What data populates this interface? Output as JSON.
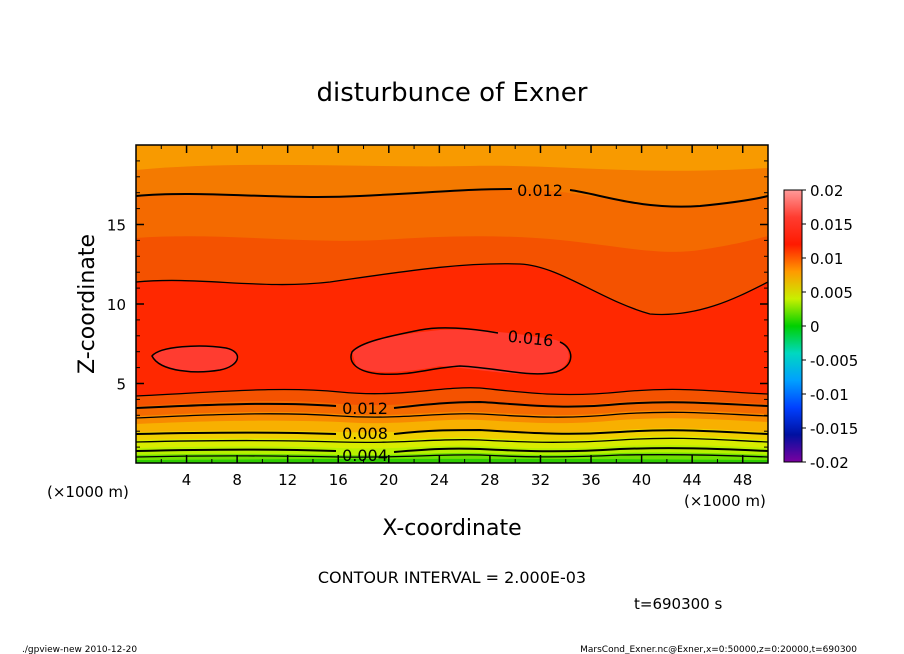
{
  "chart_data": {
    "type": "heatmap",
    "title": "disturbunce of Exner",
    "xlabel": "X-coordinate",
    "ylabel": "Z-coordinate",
    "x_unit": "(×1000 m)",
    "y_unit": "(×1000 m)",
    "xlim": [
      0,
      50
    ],
    "ylim": [
      0,
      20
    ],
    "x_ticks": [
      "4",
      "8",
      "12",
      "16",
      "20",
      "24",
      "28",
      "32",
      "36",
      "40",
      "44",
      "48"
    ],
    "y_ticks": [
      "5",
      "10",
      "15"
    ],
    "colorbar": {
      "tick_labels": [
        "0.02",
        "0.015",
        "0.01",
        "0.005",
        "0",
        "-0.005",
        "-0.01",
        "-0.015",
        "-0.02"
      ],
      "range": [
        -0.02,
        0.02
      ]
    },
    "contour_interval": 0.002,
    "contour_labels": [
      "0.012",
      "0.016",
      "0.012",
      "0.008",
      "0.004"
    ],
    "field_samples_x": [
      0,
      8,
      16,
      24,
      32,
      42,
      50
    ],
    "field_samples_z": [
      0,
      2,
      4,
      6,
      8,
      10,
      12,
      14,
      16,
      18,
      20
    ],
    "field_values": [
      [
        0.0004,
        0.0004,
        0.0004,
        0.0005,
        0.0004,
        0.0005,
        0.0004
      ],
      [
        0.009,
        0.0092,
        0.0094,
        0.0097,
        0.0093,
        0.0096,
        0.0091
      ],
      [
        0.0145,
        0.0147,
        0.0148,
        0.0152,
        0.0146,
        0.015,
        0.0145
      ],
      [
        0.0158,
        0.0157,
        0.0157,
        0.0163,
        0.0159,
        0.0157,
        0.0155
      ],
      [
        0.016,
        0.0157,
        0.0158,
        0.0163,
        0.0158,
        0.0153,
        0.0152
      ],
      [
        0.0151,
        0.015,
        0.0152,
        0.0154,
        0.015,
        0.0143,
        0.0147
      ],
      [
        0.0139,
        0.0139,
        0.0141,
        0.0142,
        0.0142,
        0.0137,
        0.0138
      ],
      [
        0.0131,
        0.0131,
        0.0132,
        0.0132,
        0.0132,
        0.013,
        0.013
      ],
      [
        0.0122,
        0.0121,
        0.0122,
        0.0122,
        0.0121,
        0.0119,
        0.0121
      ],
      [
        0.0114,
        0.0113,
        0.0114,
        0.0114,
        0.0113,
        0.0112,
        0.0113
      ],
      [
        0.0108,
        0.0108,
        0.0108,
        0.0108,
        0.0108,
        0.0108,
        0.0108
      ]
    ]
  },
  "contour_interval_text": "CONTOUR INTERVAL = 2.000E-03",
  "time_text": "t=690300 s",
  "footer_left": "./gpview-new  2010-12-20",
  "footer_right": "MarsCond_Exner.nc@Exner,x=0:50000,z=0:20000,t=690300"
}
